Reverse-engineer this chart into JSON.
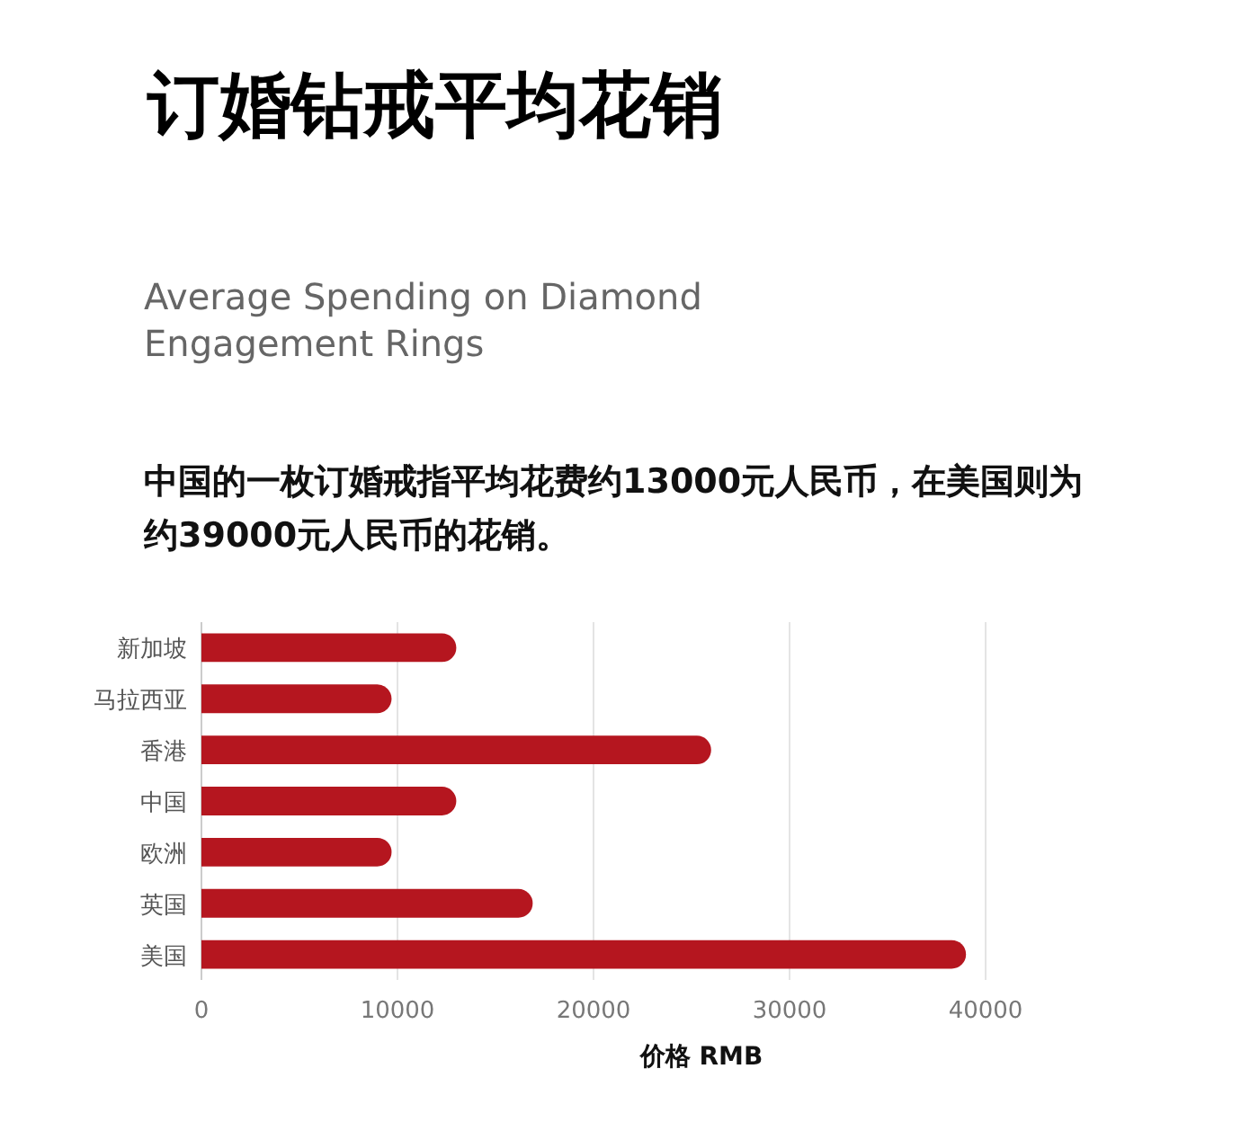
{
  "chart_data": {
    "type": "bar",
    "orientation": "horizontal",
    "title": "订婚钻戒平均花销",
    "subtitle": "Average Spending on Diamond Engagement Rings",
    "annotations": [
      "中国的一枚订婚戒指平均花费约13000元人民币，在美国则为约39000元人民币的花销。"
    ],
    "categories": [
      "新加坡",
      "马拉西亚",
      "香港",
      "中国",
      "欧洲",
      "英国",
      "美国"
    ],
    "values": [
      13000,
      9700,
      26000,
      13000,
      9700,
      16900,
      39000
    ],
    "color": "#b5161f",
    "xlim": [
      0,
      40000
    ],
    "xticks": [
      0,
      10000,
      20000,
      30000,
      40000
    ],
    "xlabel": "价格 RMB",
    "grid": "x"
  }
}
